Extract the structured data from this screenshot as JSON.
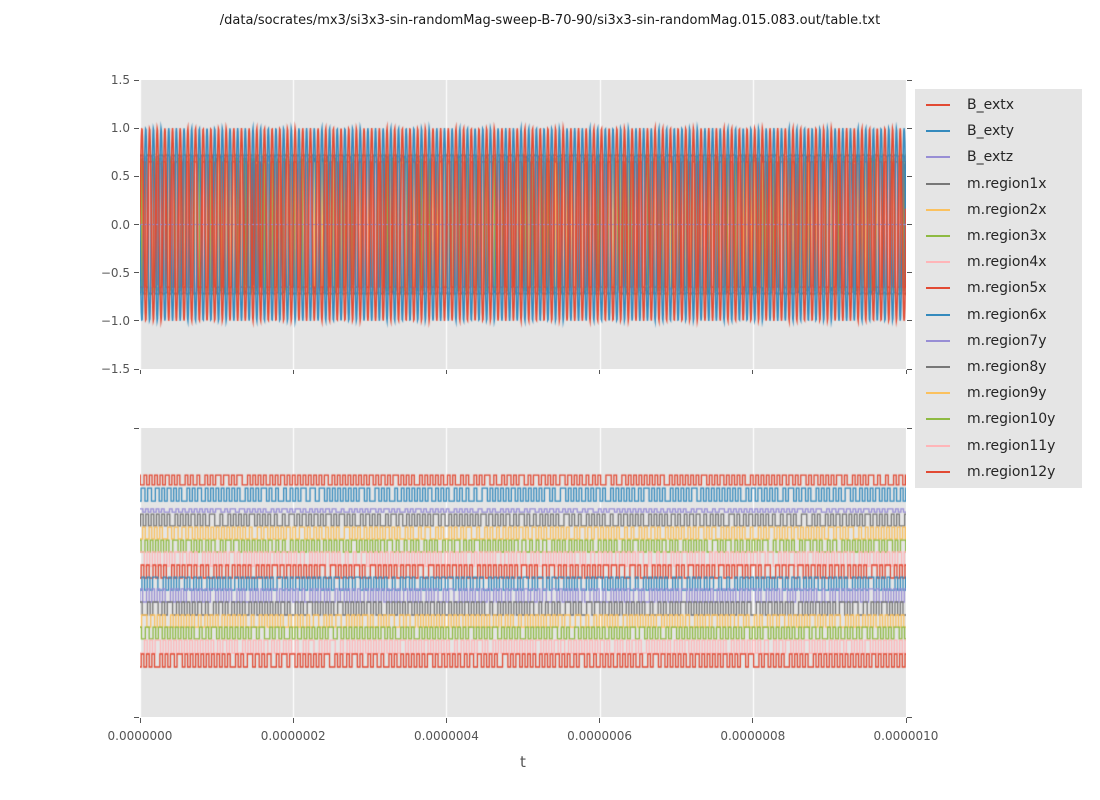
{
  "figure": {
    "title": "/data/socrates/mx3/si3x3-sin-randomMag-sweep-B-70-90/si3x3-sin-randomMag.015.083.out/table.txt",
    "background": "#ffffff",
    "axes_background": "#e5e5e5",
    "grid_color": "#ffffff",
    "tick_color": "#555555",
    "text_color": "#262626"
  },
  "palette": {
    "red": "#e24a33",
    "blue": "#348abd",
    "purple": "#988ed5",
    "gray": "#777777",
    "orange": "#fbc15e",
    "green": "#8eba42",
    "pink": "#ffb5b8"
  },
  "xaxis": {
    "label": "t",
    "tick_labels": [
      "0.0000000",
      "0.0000002",
      "0.0000004",
      "0.0000006",
      "0.0000008",
      "0.0000010"
    ]
  },
  "top_plot": {
    "ytick_labels": [
      "1.5",
      "1.0",
      "0.5",
      "0.0",
      "−0.5",
      "−1.0",
      "−1.5"
    ]
  },
  "legend": {
    "entries": [
      {
        "label": "B_extx",
        "color": "#e24a33"
      },
      {
        "label": "B_exty",
        "color": "#348abd"
      },
      {
        "label": "B_extz",
        "color": "#988ed5"
      },
      {
        "label": "m.region1x",
        "color": "#777777"
      },
      {
        "label": "m.region2x",
        "color": "#fbc15e"
      },
      {
        "label": "m.region3x",
        "color": "#8eba42"
      },
      {
        "label": "m.region4x",
        "color": "#ffb5b8"
      },
      {
        "label": "m.region5x",
        "color": "#e24a33"
      },
      {
        "label": "m.region6x",
        "color": "#348abd"
      },
      {
        "label": "m.region7y",
        "color": "#988ed5"
      },
      {
        "label": "m.region8y",
        "color": "#777777"
      },
      {
        "label": "m.region9y",
        "color": "#fbc15e"
      },
      {
        "label": "m.region10y",
        "color": "#8eba42"
      },
      {
        "label": "m.region11y",
        "color": "#ffb5b8"
      },
      {
        "label": "m.region12y",
        "color": "#e24a33"
      }
    ]
  },
  "chart_data": {
    "type": "line",
    "title": "/data/socrates/mx3/si3x3-sin-randomMag-sweep-B-70-90/si3x3-sin-randomMag.015.083.out/table.txt",
    "xlabel": "t",
    "x_range_s": [
      0.0,
      1e-06
    ],
    "x_ticks": [
      0.0,
      2e-07,
      4e-07,
      6e-07,
      8e-07,
      1e-06
    ],
    "grid": "vertical-white",
    "legend_position": "right-outside",
    "subplots": [
      {
        "name": "top",
        "ylim": [
          -1.5,
          1.5
        ],
        "y_ticks": [
          1.5,
          1.0,
          0.5,
          0.0,
          -0.5,
          -1.0,
          -1.5
        ],
        "series": [
          {
            "name": "B_extx",
            "color": "#e24a33",
            "waveform": "sine",
            "amplitude": 1.0,
            "cycles": 100,
            "phase": 0.0
          },
          {
            "name": "B_exty",
            "color": "#348abd",
            "waveform": "sine",
            "amplitude": 1.0,
            "cycles": 100,
            "phase": 3.14159
          },
          {
            "name": "B_extz",
            "color": "#988ed5",
            "waveform": "constant",
            "value": 0.0
          },
          {
            "name": "m.region1x",
            "color": "#777777",
            "waveform": "square",
            "levels": [
              -0.7,
              0.7
            ],
            "cycles": 144
          },
          {
            "name": "m.region2x",
            "color": "#fbc15e",
            "waveform": "square",
            "levels": [
              -0.73,
              0.73
            ],
            "cycles": 144
          },
          {
            "name": "m.region3x",
            "color": "#8eba42",
            "waveform": "square",
            "levels": [
              -0.66,
              0.66
            ],
            "cycles": 144
          },
          {
            "name": "m.region4x",
            "color": "#ffb5b8",
            "waveform": "square",
            "levels": [
              -0.69,
              0.69
            ],
            "cycles": 144
          },
          {
            "name": "m.region5x",
            "color": "#e24a33",
            "waveform": "square",
            "levels": [
              -0.63,
              0.63
            ],
            "cycles": 144
          },
          {
            "name": "m.region6x",
            "color": "#348abd",
            "waveform": "square",
            "levels": [
              -0.71,
              0.71
            ],
            "cycles": 144
          },
          {
            "name": "m.region7y",
            "color": "#988ed5",
            "waveform": "square",
            "levels": [
              -0.67,
              0.67
            ],
            "cycles": 144
          },
          {
            "name": "m.region8y",
            "color": "#777777",
            "waveform": "square",
            "levels": [
              -0.72,
              0.72
            ],
            "cycles": 144
          },
          {
            "name": "m.region9y",
            "color": "#fbc15e",
            "waveform": "square",
            "levels": [
              -0.64,
              0.64
            ],
            "cycles": 144
          },
          {
            "name": "m.region10y",
            "color": "#8eba42",
            "waveform": "square",
            "levels": [
              -0.68,
              0.68
            ],
            "cycles": 144
          },
          {
            "name": "m.region11y",
            "color": "#ffb5b8",
            "waveform": "square",
            "levels": [
              -0.7,
              0.7
            ],
            "cycles": 144
          },
          {
            "name": "m.region12y",
            "color": "#e24a33",
            "waveform": "square",
            "levels": [
              -0.65,
              0.65
            ],
            "cycles": 144
          }
        ]
      },
      {
        "name": "bottom",
        "y_ticks": [],
        "note": "stacked square-wave state bands, top-to-bottom in legend order; band levels given as fraction of panel height",
        "series": [
          {
            "name": "B_extx",
            "color": "#e24a33",
            "waveform": "square",
            "band_top": 0.163,
            "band_bottom": 0.197,
            "cycles": 144
          },
          {
            "name": "B_exty",
            "color": "#348abd",
            "waveform": "square",
            "band_top": 0.208,
            "band_bottom": 0.253,
            "cycles": 144
          },
          {
            "name": "B_extz",
            "color": "#988ed5",
            "waveform": "square",
            "band_top": 0.28,
            "band_bottom": 0.291,
            "cycles": 144
          },
          {
            "name": "m.region1x",
            "color": "#777777",
            "waveform": "square",
            "band_top": 0.298,
            "band_bottom": 0.339,
            "cycles": 144
          },
          {
            "name": "m.region2x",
            "color": "#fbc15e",
            "waveform": "square",
            "band_top": 0.343,
            "band_bottom": 0.384,
            "cycles": 144
          },
          {
            "name": "m.region3x",
            "color": "#8eba42",
            "waveform": "square",
            "band_top": 0.388,
            "band_bottom": 0.429,
            "cycles": 144
          },
          {
            "name": "m.region4x",
            "color": "#ffb5b8",
            "waveform": "square",
            "band_top": 0.429,
            "band_bottom": 0.478,
            "cycles": 144
          },
          {
            "name": "m.region5x",
            "color": "#e24a33",
            "waveform": "square",
            "band_top": 0.474,
            "band_bottom": 0.519,
            "cycles": 144
          },
          {
            "name": "m.region6x",
            "color": "#348abd",
            "waveform": "square",
            "band_top": 0.516,
            "band_bottom": 0.561,
            "cycles": 144
          },
          {
            "name": "m.region7y",
            "color": "#988ed5",
            "waveform": "square",
            "band_top": 0.557,
            "band_bottom": 0.602,
            "cycles": 144
          },
          {
            "name": "m.region8y",
            "color": "#777777",
            "waveform": "square",
            "band_top": 0.602,
            "band_bottom": 0.647,
            "cycles": 144
          },
          {
            "name": "m.region9y",
            "color": "#fbc15e",
            "waveform": "square",
            "band_top": 0.647,
            "band_bottom": 0.689,
            "cycles": 144
          },
          {
            "name": "m.region10y",
            "color": "#8eba42",
            "waveform": "square",
            "band_top": 0.689,
            "band_bottom": 0.73,
            "cycles": 144
          },
          {
            "name": "m.region11y",
            "color": "#ffb5b8",
            "waveform": "square",
            "band_top": 0.734,
            "band_bottom": 0.779,
            "cycles": 144
          },
          {
            "name": "m.region12y",
            "color": "#e24a33",
            "waveform": "square",
            "band_top": 0.782,
            "band_bottom": 0.827,
            "cycles": 144
          }
        ]
      }
    ]
  }
}
